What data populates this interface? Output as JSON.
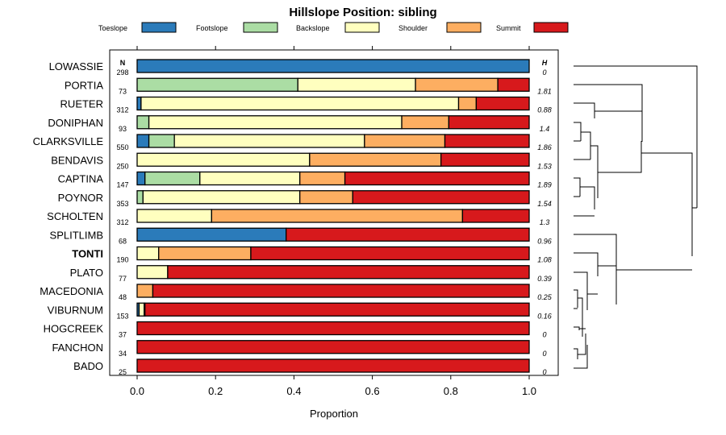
{
  "chart_data": {
    "type": "bar",
    "stacked": true,
    "orientation": "horizontal",
    "title": "Hillslope Position: sibling",
    "xlabel": "Proportion",
    "xlim": [
      0,
      1
    ],
    "xticks": [
      "0.0",
      "0.2",
      "0.4",
      "0.6",
      "0.8",
      "1.0"
    ],
    "n_header": "N",
    "h_header": "H",
    "highlight": "TONTI",
    "legend_position": "top",
    "categories_legend": [
      {
        "name": "Toeslope",
        "color": "#2b7bba"
      },
      {
        "name": "Footslope",
        "color": "#abdda4"
      },
      {
        "name": "Backslope",
        "color": "#ffffbf"
      },
      {
        "name": "Shoulder",
        "color": "#fdae61"
      },
      {
        "name": "Summit",
        "color": "#d7191c"
      }
    ],
    "rows": [
      {
        "name": "LOWASSIE",
        "n": "298",
        "h": "0",
        "values": [
          1.0,
          0,
          0,
          0,
          0
        ]
      },
      {
        "name": "PORTIA",
        "n": "73",
        "h": "1.81",
        "values": [
          0,
          0.41,
          0.3,
          0.21,
          0.08
        ]
      },
      {
        "name": "RUETER",
        "n": "312",
        "h": "0.88",
        "values": [
          0.01,
          0,
          0.81,
          0.045,
          0.135
        ]
      },
      {
        "name": "DONIPHAN",
        "n": "93",
        "h": "1.4",
        "values": [
          0,
          0.03,
          0.645,
          0.12,
          0.205
        ]
      },
      {
        "name": "CLARKSVILLE",
        "n": "550",
        "h": "1.86",
        "values": [
          0.03,
          0.065,
          0.485,
          0.205,
          0.215
        ]
      },
      {
        "name": "BENDAVIS",
        "n": "250",
        "h": "1.53",
        "values": [
          0,
          0,
          0.44,
          0.335,
          0.225
        ]
      },
      {
        "name": "CAPTINA",
        "n": "147",
        "h": "1.89",
        "values": [
          0.02,
          0.14,
          0.255,
          0.115,
          0.47
        ]
      },
      {
        "name": "POYNOR",
        "n": "353",
        "h": "1.54",
        "values": [
          0,
          0.015,
          0.4,
          0.135,
          0.45
        ]
      },
      {
        "name": "SCHOLTEN",
        "n": "312",
        "h": "1.3",
        "values": [
          0,
          0,
          0.19,
          0.64,
          0.17
        ]
      },
      {
        "name": "SPLITLIMB",
        "n": "68",
        "h": "0.96",
        "values": [
          0.38,
          0,
          0,
          0,
          0.62
        ]
      },
      {
        "name": "TONTI",
        "n": "190",
        "h": "1.08",
        "values": [
          0,
          0,
          0.055,
          0.235,
          0.71
        ]
      },
      {
        "name": "PLATO",
        "n": "77",
        "h": "0.39",
        "values": [
          0,
          0,
          0.078,
          0,
          0.922
        ]
      },
      {
        "name": "MACEDONIA",
        "n": "48",
        "h": "0.25",
        "values": [
          0,
          0,
          0,
          0.04,
          0.96
        ]
      },
      {
        "name": "VIBURNUM",
        "n": "153",
        "h": "0.16",
        "values": [
          0.005,
          0,
          0.013,
          0.002,
          0.98
        ]
      },
      {
        "name": "HOGCREEK",
        "n": "37",
        "h": "0",
        "values": [
          0,
          0,
          0,
          0,
          1.0
        ]
      },
      {
        "name": "FANCHON",
        "n": "34",
        "h": "0",
        "values": [
          0,
          0,
          0,
          0,
          1.0
        ]
      },
      {
        "name": "BADO",
        "n": "25",
        "h": "0",
        "values": [
          0,
          0,
          0,
          0,
          1.0
        ]
      }
    ]
  }
}
